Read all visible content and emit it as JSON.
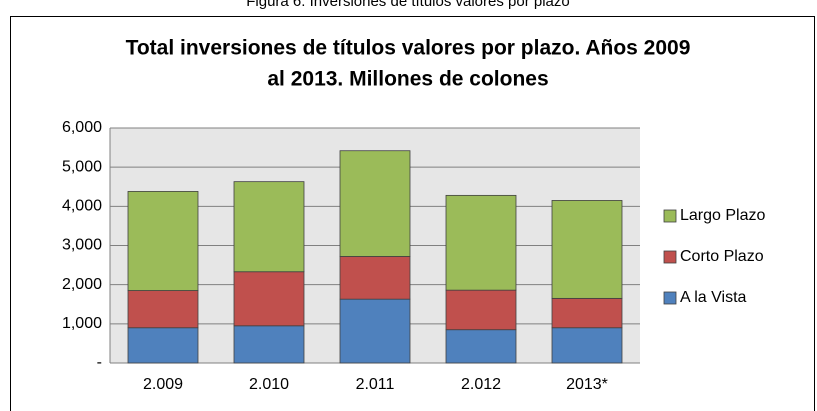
{
  "chart_data": {
    "type": "stacked_bar",
    "caption": "Figura 6. Inversiones de títulos valores por plazo",
    "title": [
      "Total inversiones de títulos valores por plazo. Años 2009",
      "al 2013.  Millones de colones"
    ],
    "categories": [
      "2.009",
      "2.010",
      "2.011",
      "2.012",
      "2013*"
    ],
    "series": [
      {
        "name": "A la Vista",
        "color": "#4f81bd",
        "values": [
          900,
          950,
          1630,
          850,
          900
        ]
      },
      {
        "name": "Corto Plazo",
        "color": "#c0504d",
        "values": [
          950,
          1380,
          1090,
          1010,
          750
        ]
      },
      {
        "name": "Largo Plazo",
        "color": "#9bbb59",
        "values": [
          2530,
          2300,
          2700,
          2420,
          2500
        ]
      }
    ],
    "ylim": [
      0,
      6000
    ],
    "yticks": [
      {
        "value": 0,
        "label": "-"
      },
      {
        "value": 1000,
        "label": "1,000"
      },
      {
        "value": 2000,
        "label": "2,000"
      },
      {
        "value": 3000,
        "label": "3,000"
      },
      {
        "value": 4000,
        "label": "4,000"
      },
      {
        "value": 5000,
        "label": "5,000"
      },
      {
        "value": 6000,
        "label": "6,000"
      }
    ],
    "grid": true,
    "legend": "right"
  }
}
